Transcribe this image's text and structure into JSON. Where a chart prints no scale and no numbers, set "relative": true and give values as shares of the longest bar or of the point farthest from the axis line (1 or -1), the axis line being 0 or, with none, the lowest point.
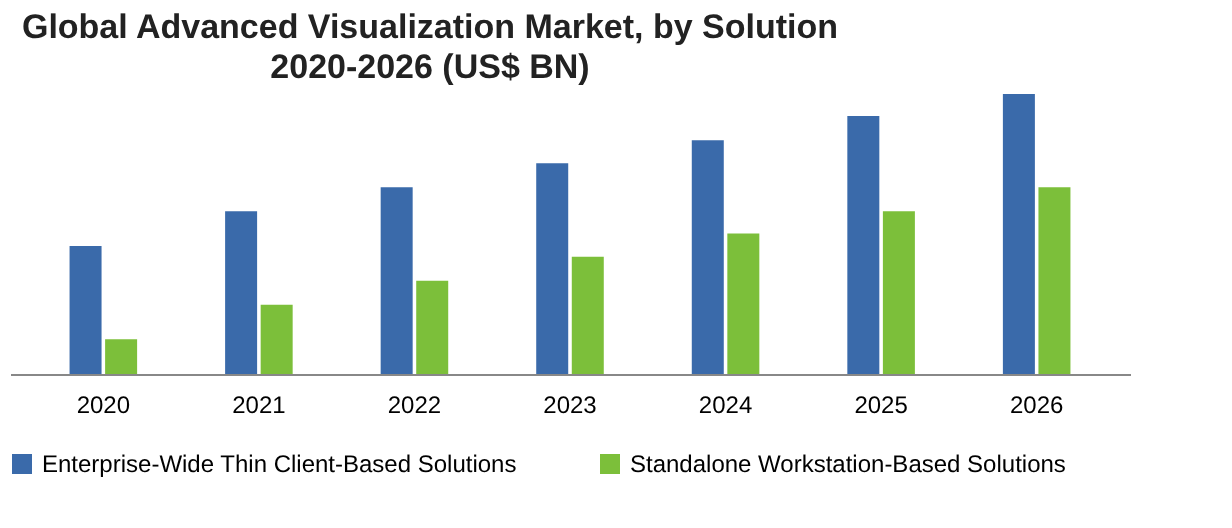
{
  "chart_data": {
    "type": "bar",
    "title": "Global Advanced Visualization Market, by Solution",
    "subtitle": "2020-2026 (US$ BN)",
    "relative": true,
    "categories": [
      "2020",
      "2021",
      "2022",
      "2023",
      "2024",
      "2025",
      "2026"
    ],
    "series": [
      {
        "name": "Enterprise-Wide Thin Client-Based Solutions",
        "color": "#3a6aaa",
        "values": [
          0.457,
          0.581,
          0.667,
          0.753,
          0.835,
          0.921,
          1
        ]
      },
      {
        "name": "Standalone Workstation-Based Solutions",
        "color": "#7cbf3a",
        "values": [
          0.124,
          0.247,
          0.333,
          0.419,
          0.502,
          0.581,
          0.667
        ]
      }
    ],
    "legend": "bottom",
    "grid": false
  }
}
